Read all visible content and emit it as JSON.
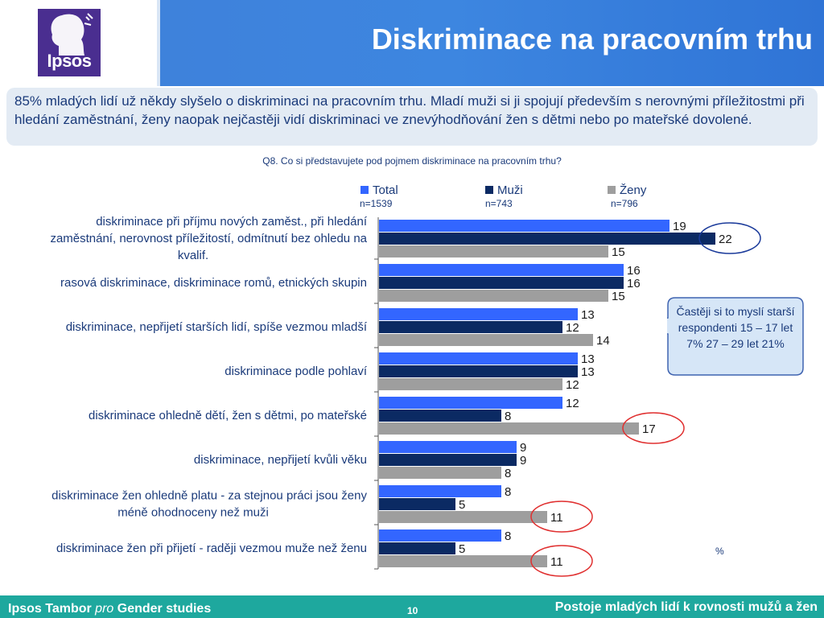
{
  "header": {
    "logo_text": "Ipsos",
    "title": "Diskriminace na pracovním trhu"
  },
  "summary": "85% mladých lidí už někdy slyšelo o diskriminaci na pracovním trhu. Mladí muži si ji spojují především s nerovnými příležitostmi při hledání zaměstnání, ženy naopak nejčastěji vidí diskriminaci ve znevýhodňování žen s dětmi nebo po mateřské dovolené.",
  "question": "Q8. Co si představujete pod pojmem diskriminace na pracovním trhu?",
  "legend": [
    {
      "label": "Total",
      "n": "n=1539",
      "color": "#3366ff"
    },
    {
      "label": "Muži",
      "n": "n=743",
      "color": "#0b2a63"
    },
    {
      "label": "Ženy",
      "n": "n=796",
      "color": "#9e9e9e"
    }
  ],
  "callout": "Častěji si to myslí starší respondenti 15 – 17 let 7%  27 – 29 let 21%",
  "unit_label": "%",
  "chart_data": {
    "type": "bar",
    "orientation": "horizontal",
    "categories": [
      "diskriminace při příjmu nových zaměst., při hledání zaměstnání, nerovnost příležitostí, odmítnutí bez ohledu na kvalif.",
      "rasová diskriminace, diskriminace romů, etnických skupin",
      "diskriminace, nepřijetí starších lidí, spíše vezmou mladší",
      "diskriminace podle pohlaví",
      "diskriminace ohledně dětí, žen s dětmi, po mateřské",
      "diskriminace, nepřijetí kvůli věku",
      "diskriminace žen ohledně platu - za stejnou práci jsou ženy méně ohodnoceny než muži",
      "diskriminace žen při přijetí - raději vezmou muže než ženu"
    ],
    "series": [
      {
        "name": "Total",
        "values": [
          19,
          16,
          13,
          13,
          12,
          9,
          8,
          8
        ]
      },
      {
        "name": "Muži",
        "values": [
          22,
          16,
          12,
          13,
          8,
          9,
          5,
          5
        ]
      },
      {
        "name": "Ženy",
        "values": [
          15,
          15,
          14,
          12,
          17,
          8,
          11,
          11
        ]
      }
    ],
    "highlighted": [
      {
        "category_index": 0,
        "series": "Muži"
      },
      {
        "category_index": 4,
        "series": "Ženy"
      },
      {
        "category_index": 6,
        "series": "Ženy"
      },
      {
        "category_index": 7,
        "series": "Ženy"
      }
    ],
    "xlim": [
      0,
      25
    ],
    "legend_position": "top",
    "grid": false
  },
  "footer": {
    "left_a": "Ipsos Tambor",
    "left_b": "pro",
    "left_c": "Gender studies",
    "page": "10",
    "right": "Postoje mladých lidí k rovnosti mužů a žen"
  }
}
